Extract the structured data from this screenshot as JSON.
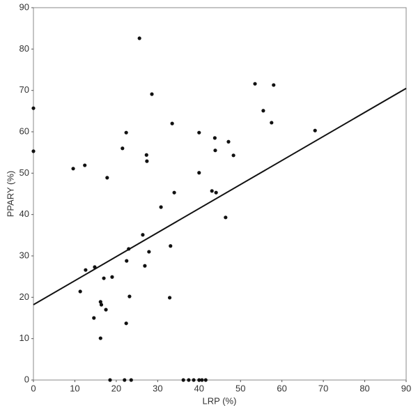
{
  "chart_data": {
    "type": "scatter",
    "x_label": "LRP (%)",
    "y_label": "PPARY (%)",
    "x": [
      0,
      0,
      9.6,
      12.4,
      12.6,
      11.3,
      14.8,
      14.6,
      16.2,
      16.4,
      16.2,
      17.0,
      17.5,
      17.8,
      19.0,
      18.5,
      21.5,
      22.4,
      22.5,
      23.0,
      22.4,
      23.2,
      22.0,
      23.6,
      25.6,
      26.4,
      27.3,
      27.4,
      26.9,
      27.9,
      28.6,
      30.8,
      33.1,
      32.9,
      33.5,
      34.0,
      36.2,
      37.5,
      38.7,
      40.0,
      40.7,
      41.6,
      40.0,
      40.0,
      43.1,
      44.1,
      43.8,
      43.9,
      46.4,
      47.1,
      48.3,
      53.5,
      55.5,
      57.5,
      58.0,
      68.0
    ],
    "values": [
      65.7,
      55.3,
      51.1,
      51.9,
      26.6,
      21.4,
      27.3,
      15.0,
      18.9,
      18.2,
      10.1,
      24.6,
      17.0,
      48.9,
      24.9,
      0,
      56.0,
      59.8,
      28.8,
      31.7,
      13.7,
      20.2,
      0,
      0,
      82.6,
      35.1,
      54.4,
      52.9,
      27.6,
      31.0,
      69.1,
      41.8,
      32.4,
      19.9,
      62.0,
      45.3,
      0,
      0,
      0,
      0,
      0,
      0,
      59.8,
      50.1,
      45.7,
      45.3,
      58.5,
      55.5,
      39.3,
      57.6,
      54.3,
      71.6,
      65.1,
      62.2,
      71.3,
      60.3
    ],
    "color": "#111111",
    "fit_line": {
      "x": [
        0,
        90
      ],
      "values": [
        18.2,
        70.5
      ],
      "color": "#111111"
    },
    "xlim": [
      0,
      90
    ],
    "ylim": [
      0,
      90
    ],
    "xticks": [
      0,
      10,
      20,
      30,
      40,
      50,
      60,
      70,
      80,
      90
    ],
    "yticks": [
      0,
      10,
      20,
      30,
      40,
      50,
      60,
      70,
      80,
      90
    ],
    "grid": false
  }
}
